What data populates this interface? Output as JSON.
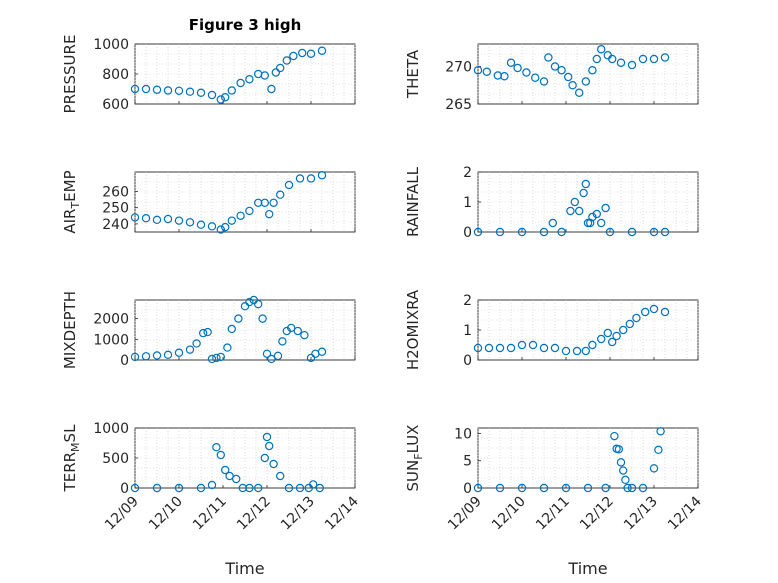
{
  "figure": {
    "title": "Figure 3 high",
    "x_label": "Time"
  },
  "chart_data": [
    {
      "type": "scatter",
      "ylabel": "PRESSURE",
      "ylim": [
        600,
        1000
      ],
      "yticks": [
        "600",
        "800",
        "1000"
      ],
      "ytick_values": [
        600,
        800,
        1000
      ],
      "xlim": [
        0,
        5
      ],
      "xticks": [
        "12/09",
        "12/10",
        "12/11",
        "12/12",
        "12/13",
        "12/14"
      ],
      "show_x_ticklabels": false,
      "grid": true,
      "color": "#0072BD",
      "x": [
        0.0,
        0.25,
        0.5,
        0.75,
        1.0,
        1.25,
        1.5,
        1.75,
        1.95,
        2.05,
        2.2,
        2.4,
        2.6,
        2.8,
        2.95,
        3.1,
        3.2,
        3.3,
        3.45,
        3.6,
        3.8,
        4.0,
        4.25
      ],
      "y": [
        700,
        700,
        695,
        690,
        688,
        682,
        675,
        660,
        630,
        645,
        690,
        740,
        765,
        800,
        790,
        700,
        810,
        840,
        890,
        920,
        940,
        935,
        955
      ]
    },
    {
      "type": "scatter",
      "ylabel": "THETA",
      "ylim": [
        265,
        273
      ],
      "yticks": [
        "265",
        "270"
      ],
      "ytick_values": [
        265,
        270
      ],
      "xlim": [
        0,
        5
      ],
      "xticks": [
        "12/09",
        "12/10",
        "12/11",
        "12/12",
        "12/13",
        "12/14"
      ],
      "show_x_ticklabels": false,
      "grid": true,
      "color": "#0072BD",
      "x": [
        0.0,
        0.2,
        0.45,
        0.6,
        0.75,
        0.9,
        1.1,
        1.3,
        1.5,
        1.6,
        1.75,
        1.9,
        2.05,
        2.15,
        2.3,
        2.45,
        2.6,
        2.7,
        2.8,
        2.95,
        3.05,
        3.25,
        3.5,
        3.75,
        4.0,
        4.25
      ],
      "y": [
        269.5,
        269.3,
        268.8,
        268.7,
        270.5,
        269.8,
        269.2,
        268.5,
        268.0,
        271.2,
        270.0,
        269.5,
        268.6,
        267.5,
        266.5,
        268.0,
        269.5,
        271.0,
        272.3,
        271.5,
        271.0,
        270.5,
        270.2,
        271.0,
        271.0,
        271.2
      ]
    },
    {
      "type": "scatter",
      "ylabel": "AIR_TEMP",
      "ylim": [
        235,
        272
      ],
      "yticks": [
        "240",
        "250",
        "260"
      ],
      "ytick_values": [
        240,
        250,
        260
      ],
      "xlim": [
        0,
        5
      ],
      "xticks": [
        "12/09",
        "12/10",
        "12/11",
        "12/12",
        "12/13",
        "12/14"
      ],
      "show_x_ticklabels": false,
      "grid": true,
      "color": "#0072BD",
      "x": [
        0.0,
        0.25,
        0.5,
        0.75,
        1.0,
        1.25,
        1.5,
        1.75,
        1.95,
        2.05,
        2.2,
        2.4,
        2.6,
        2.8,
        2.95,
        3.05,
        3.15,
        3.3,
        3.5,
        3.75,
        4.0,
        4.25
      ],
      "y": [
        244,
        243.5,
        242.5,
        243,
        242,
        241,
        239.5,
        238.5,
        236.5,
        238,
        242,
        245,
        248,
        253,
        253,
        246,
        253,
        258,
        264,
        268,
        268,
        270
      ]
    },
    {
      "type": "scatter",
      "ylabel": "RAINFALL",
      "ylim": [
        0,
        2
      ],
      "yticks": [
        "0",
        "1",
        "2"
      ],
      "ytick_values": [
        0,
        1,
        2
      ],
      "xlim": [
        0,
        5
      ],
      "xticks": [
        "12/09",
        "12/10",
        "12/11",
        "12/12",
        "12/13",
        "12/14"
      ],
      "show_x_ticklabels": false,
      "grid": true,
      "color": "#0072BD",
      "x": [
        0.0,
        0.5,
        1.0,
        1.5,
        1.7,
        1.9,
        2.1,
        2.2,
        2.3,
        2.4,
        2.45,
        2.5,
        2.55,
        2.6,
        2.7,
        2.8,
        2.9,
        3.0,
        3.5,
        4.0,
        4.25
      ],
      "y": [
        0,
        0,
        0,
        0,
        0.3,
        0,
        0.7,
        1.0,
        0.7,
        1.3,
        1.6,
        0.3,
        0.3,
        0.5,
        0.6,
        0.3,
        0.8,
        0,
        0,
        0,
        0
      ]
    },
    {
      "type": "scatter",
      "ylabel": "MIXDEPTH",
      "ylim": [
        0,
        2900
      ],
      "yticks": [
        "0",
        "1000",
        "2000"
      ],
      "ytick_values": [
        0,
        1000,
        2000
      ],
      "xlim": [
        0,
        5
      ],
      "xticks": [
        "12/09",
        "12/10",
        "12/11",
        "12/12",
        "12/13",
        "12/14"
      ],
      "show_x_ticklabels": false,
      "grid": true,
      "color": "#0072BD",
      "x": [
        0.0,
        0.25,
        0.5,
        0.75,
        1.0,
        1.25,
        1.4,
        1.55,
        1.65,
        1.75,
        1.85,
        1.95,
        2.1,
        2.2,
        2.35,
        2.5,
        2.6,
        2.7,
        2.8,
        2.9,
        3.0,
        3.1,
        3.25,
        3.35,
        3.45,
        3.55,
        3.7,
        3.85,
        4.0,
        4.1,
        4.25
      ],
      "y": [
        150,
        180,
        220,
        250,
        350,
        500,
        800,
        1300,
        1350,
        50,
        100,
        150,
        600,
        1500,
        2000,
        2600,
        2800,
        2900,
        2700,
        2000,
        300,
        50,
        200,
        900,
        1400,
        1550,
        1400,
        1200,
        100,
        300,
        400
      ]
    },
    {
      "type": "scatter",
      "ylabel": "H2OMIXRA",
      "ylim": [
        0,
        2
      ],
      "yticks": [
        "0",
        "1",
        "2"
      ],
      "ytick_values": [
        0,
        1,
        2
      ],
      "xlim": [
        0,
        5
      ],
      "xticks": [
        "12/09",
        "12/10",
        "12/11",
        "12/12",
        "12/13",
        "12/14"
      ],
      "show_x_ticklabels": false,
      "grid": true,
      "color": "#0072BD",
      "x": [
        0.0,
        0.25,
        0.5,
        0.75,
        1.0,
        1.25,
        1.5,
        1.75,
        2.0,
        2.25,
        2.45,
        2.6,
        2.8,
        2.95,
        3.05,
        3.15,
        3.3,
        3.45,
        3.6,
        3.8,
        4.0,
        4.25
      ],
      "y": [
        0.4,
        0.4,
        0.4,
        0.4,
        0.5,
        0.5,
        0.4,
        0.4,
        0.3,
        0.3,
        0.3,
        0.5,
        0.7,
        0.9,
        0.6,
        0.8,
        1.0,
        1.2,
        1.4,
        1.6,
        1.7,
        1.6
      ]
    },
    {
      "type": "scatter",
      "ylabel": "TERR_MSL",
      "ylim": [
        0,
        1000
      ],
      "yticks": [
        "0",
        "500",
        "1000"
      ],
      "ytick_values": [
        0,
        500,
        1000
      ],
      "xlim": [
        0,
        5
      ],
      "xticks": [
        "12/09",
        "12/10",
        "12/11",
        "12/12",
        "12/13",
        "12/14"
      ],
      "show_x_ticklabels": true,
      "grid": true,
      "color": "#0072BD",
      "x": [
        0.0,
        0.5,
        1.0,
        1.5,
        1.75,
        1.85,
        1.95,
        2.05,
        2.15,
        2.3,
        2.45,
        2.6,
        2.8,
        2.95,
        3.0,
        3.05,
        3.15,
        3.3,
        3.5,
        3.75,
        3.95,
        4.05,
        4.2
      ],
      "y": [
        0,
        0,
        0,
        0,
        50,
        680,
        550,
        300,
        200,
        150,
        0,
        0,
        0,
        500,
        850,
        700,
        400,
        200,
        0,
        0,
        0,
        60,
        0
      ]
    },
    {
      "type": "scatter",
      "ylabel": "SUN_FLUX",
      "ylim": [
        0,
        11
      ],
      "yticks": [
        "0",
        "5",
        "10"
      ],
      "ytick_values": [
        0,
        5,
        10
      ],
      "xlim": [
        0,
        5
      ],
      "xticks": [
        "12/09",
        "12/10",
        "12/11",
        "12/12",
        "12/13",
        "12/14"
      ],
      "show_x_ticklabels": true,
      "grid": true,
      "color": "#0072BD",
      "x": [
        0.0,
        0.5,
        1.0,
        1.5,
        2.0,
        2.5,
        2.9,
        3.1,
        3.15,
        3.2,
        3.25,
        3.3,
        3.35,
        3.4,
        3.5,
        3.75,
        4.0,
        4.1,
        4.15
      ],
      "y": [
        0,
        0,
        0,
        0,
        0,
        0,
        0,
        9.5,
        7.2,
        7.1,
        4.7,
        3.2,
        1.5,
        0,
        0,
        0,
        3.6,
        7.0,
        10.4
      ]
    }
  ]
}
